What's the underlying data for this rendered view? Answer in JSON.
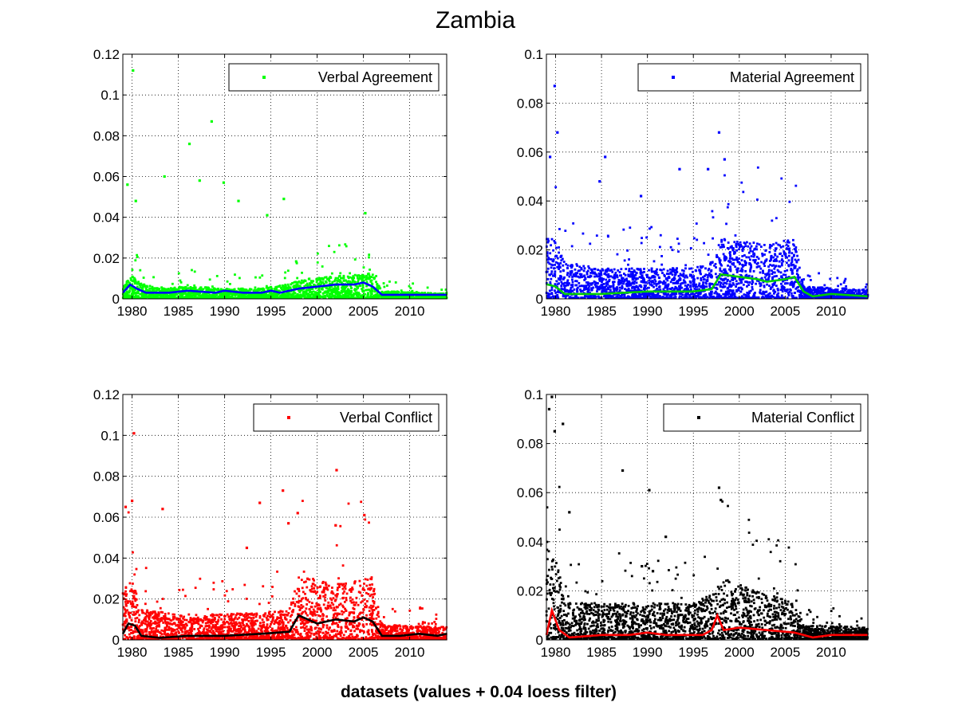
{
  "figure": {
    "title": "Zambia",
    "xlabel": "datasets (values + 0.04 loess filter)"
  },
  "chart_data": [
    {
      "type": "scatter",
      "legend": "Verbal Agreement",
      "legend_placement": "top-right",
      "grid": true,
      "point_color": "#00ff00",
      "line_color": "#0000ff",
      "xlim": [
        1979,
        2014
      ],
      "ylim": [
        0,
        0.12
      ],
      "xticks": [
        1980,
        1985,
        1990,
        1995,
        2000,
        2005,
        2010
      ],
      "yticks": [
        0,
        0.02,
        0.04,
        0.06,
        0.08,
        0.1,
        0.12
      ],
      "ytick_labels": [
        "0",
        "0.02",
        "0.04",
        "0.06",
        "0.08",
        "0.1",
        "0.12"
      ],
      "base_level": [
        [
          1979,
          0.005
        ],
        [
          1980,
          0.009
        ],
        [
          1981,
          0.006
        ],
        [
          1983,
          0.004
        ],
        [
          1986,
          0.005
        ],
        [
          1990,
          0.004
        ],
        [
          1994,
          0.004
        ],
        [
          1997,
          0.006
        ],
        [
          1999,
          0.008
        ],
        [
          2002,
          0.009
        ],
        [
          2006,
          0.01
        ],
        [
          2007,
          0.003
        ],
        [
          2014,
          0.002
        ]
      ],
      "outliers": [
        [
          1979.5,
          0.056
        ],
        [
          1980.1,
          0.112
        ],
        [
          1983.5,
          0.06
        ],
        [
          1986.2,
          0.076
        ],
        [
          1988.6,
          0.087
        ],
        [
          1989.9,
          0.057
        ],
        [
          1991.5,
          0.048
        ],
        [
          1994.6,
          0.041
        ],
        [
          1996.4,
          0.049
        ],
        [
          2005.2,
          0.042
        ],
        [
          1987.3,
          0.058
        ],
        [
          1980.4,
          0.048
        ]
      ],
      "loess": [
        [
          1979,
          0.003
        ],
        [
          1979.8,
          0.007
        ],
        [
          1980.5,
          0.005
        ],
        [
          1981.5,
          0.003
        ],
        [
          1984,
          0.003
        ],
        [
          1986,
          0.004
        ],
        [
          1989,
          0.003
        ],
        [
          1990,
          0.004
        ],
        [
          1992,
          0.003
        ],
        [
          1994,
          0.003
        ],
        [
          1995,
          0.004
        ],
        [
          1996,
          0.003
        ],
        [
          1998,
          0.005
        ],
        [
          2000,
          0.006
        ],
        [
          2002,
          0.007
        ],
        [
          2004,
          0.007
        ],
        [
          2005,
          0.008
        ],
        [
          2006,
          0.006
        ],
        [
          2007,
          0.002
        ],
        [
          2010,
          0.002
        ],
        [
          2012,
          0.002
        ],
        [
          2014,
          0.002
        ]
      ]
    },
    {
      "type": "scatter",
      "legend": "Material Agreement",
      "legend_placement": "top-right",
      "grid": true,
      "point_color": "#0000ff",
      "line_color": "#00cc00",
      "xlim": [
        1979,
        2014
      ],
      "ylim": [
        0,
        0.1
      ],
      "xticks": [
        1980,
        1985,
        1990,
        1995,
        2000,
        2005,
        2010
      ],
      "yticks": [
        0,
        0.02,
        0.04,
        0.06,
        0.08,
        0.1
      ],
      "ytick_labels": [
        "0",
        "0.02",
        "0.04",
        "0.06",
        "0.08",
        "0.1"
      ],
      "base_level": [
        [
          1979,
          0.02
        ],
        [
          1980,
          0.02
        ],
        [
          1981,
          0.012
        ],
        [
          1985,
          0.01
        ],
        [
          1990,
          0.01
        ],
        [
          1995,
          0.01
        ],
        [
          1997,
          0.012
        ],
        [
          1998,
          0.02
        ],
        [
          2003,
          0.018
        ],
        [
          2006,
          0.02
        ],
        [
          2007,
          0.004
        ],
        [
          2014,
          0.003
        ]
      ],
      "outliers": [
        [
          1979.4,
          0.058
        ],
        [
          1979.9,
          0.087
        ],
        [
          1980.2,
          0.068
        ],
        [
          1985.4,
          0.058
        ],
        [
          1993.5,
          0.053
        ],
        [
          1996.6,
          0.053
        ],
        [
          1997.8,
          0.068
        ],
        [
          1998.4,
          0.057
        ],
        [
          1984.8,
          0.048
        ],
        [
          1989.3,
          0.042
        ]
      ],
      "loess": [
        [
          1979,
          0.006
        ],
        [
          1980,
          0.005
        ],
        [
          1981,
          0.002
        ],
        [
          1985,
          0.002
        ],
        [
          1990,
          0.003
        ],
        [
          1995,
          0.003
        ],
        [
          1997,
          0.004
        ],
        [
          1998,
          0.01
        ],
        [
          2000,
          0.009
        ],
        [
          2002,
          0.008
        ],
        [
          2003,
          0.007
        ],
        [
          2005,
          0.008
        ],
        [
          2006,
          0.009
        ],
        [
          2007,
          0.003
        ],
        [
          2008,
          0.001
        ],
        [
          2010,
          0.002
        ],
        [
          2014,
          0.001
        ]
      ]
    },
    {
      "type": "scatter",
      "legend": "Verbal Conflict",
      "legend_placement": "top-right",
      "grid": true,
      "point_color": "#ff0000",
      "line_color": "#000000",
      "xlim": [
        1979,
        2014
      ],
      "ylim": [
        0,
        0.12
      ],
      "xticks": [
        1980,
        1985,
        1990,
        1995,
        2000,
        2005,
        2010
      ],
      "yticks": [
        0,
        0.02,
        0.04,
        0.06,
        0.08,
        0.1,
        0.12
      ],
      "ytick_labels": [
        "0",
        "0.02",
        "0.04",
        "0.06",
        "0.08",
        "0.1",
        "0.12"
      ],
      "base_level": [
        [
          1979,
          0.02
        ],
        [
          1980,
          0.025
        ],
        [
          1981,
          0.012
        ],
        [
          1985,
          0.01
        ],
        [
          1990,
          0.01
        ],
        [
          1995,
          0.011
        ],
        [
          1997,
          0.012
        ],
        [
          1998,
          0.025
        ],
        [
          2003,
          0.022
        ],
        [
          2006,
          0.025
        ],
        [
          2007,
          0.006
        ],
        [
          2014,
          0.005
        ]
      ],
      "outliers": [
        [
          1979.3,
          0.065
        ],
        [
          1980.2,
          0.101
        ],
        [
          1980.0,
          0.068
        ],
        [
          1983.3,
          0.064
        ],
        [
          1993.8,
          0.067
        ],
        [
          1996.3,
          0.073
        ],
        [
          1997.9,
          0.062
        ],
        [
          2002.1,
          0.083
        ],
        [
          2005.1,
          0.061
        ],
        [
          1992.4,
          0.045
        ],
        [
          1996.9,
          0.057
        ],
        [
          2002.0,
          0.056
        ]
      ],
      "loess": [
        [
          1979,
          0.003
        ],
        [
          1979.6,
          0.008
        ],
        [
          1980.3,
          0.007
        ],
        [
          1981,
          0.002
        ],
        [
          1983,
          0.001
        ],
        [
          1986,
          0.002
        ],
        [
          1990,
          0.002
        ],
        [
          1994,
          0.003
        ],
        [
          1997,
          0.004
        ],
        [
          1998,
          0.012
        ],
        [
          1999,
          0.01
        ],
        [
          2000,
          0.008
        ],
        [
          2002,
          0.01
        ],
        [
          2004,
          0.009
        ],
        [
          2005,
          0.011
        ],
        [
          2006,
          0.009
        ],
        [
          2007,
          0.002
        ],
        [
          2009,
          0.002
        ],
        [
          2011,
          0.003
        ],
        [
          2013,
          0.002
        ],
        [
          2014,
          0.003
        ]
      ]
    },
    {
      "type": "scatter",
      "legend": "Material Conflict",
      "legend_placement": "top-right",
      "grid": true,
      "point_color": "#000000",
      "line_color": "#ff0000",
      "xlim": [
        1979,
        2014
      ],
      "ylim": [
        0,
        0.1
      ],
      "xticks": [
        1980,
        1985,
        1990,
        1995,
        2000,
        2005,
        2010
      ],
      "yticks": [
        0,
        0.02,
        0.04,
        0.06,
        0.08,
        0.1
      ],
      "ytick_labels": [
        "0",
        "0.02",
        "0.04",
        "0.06",
        "0.08",
        "0.1"
      ],
      "base_level": [
        [
          1979,
          0.04
        ],
        [
          1980,
          0.03
        ],
        [
          1981,
          0.012
        ],
        [
          1985,
          0.012
        ],
        [
          1990,
          0.012
        ],
        [
          1995,
          0.012
        ],
        [
          1997,
          0.015
        ],
        [
          1998,
          0.02
        ],
        [
          2003,
          0.015
        ],
        [
          2006,
          0.012
        ],
        [
          2007,
          0.005
        ],
        [
          2014,
          0.004
        ]
      ],
      "outliers": [
        [
          1979.3,
          0.094
        ],
        [
          1979.6,
          0.099
        ],
        [
          1979.9,
          0.085
        ],
        [
          1980.8,
          0.088
        ],
        [
          1981.5,
          0.052
        ],
        [
          1987.3,
          0.069
        ],
        [
          1990.2,
          0.061
        ],
        [
          1992.0,
          0.042
        ],
        [
          1997.8,
          0.062
        ],
        [
          1998.0,
          0.057
        ],
        [
          1989.4,
          0.03
        ],
        [
          1990.6,
          0.028
        ]
      ],
      "loess": [
        [
          1979,
          0.002
        ],
        [
          1979.6,
          0.012
        ],
        [
          1980.4,
          0.004
        ],
        [
          1981.5,
          0.001
        ],
        [
          1985,
          0.002
        ],
        [
          1988,
          0.002
        ],
        [
          1990,
          0.003
        ],
        [
          1992,
          0.002
        ],
        [
          1996,
          0.002
        ],
        [
          1997,
          0.004
        ],
        [
          1997.6,
          0.01
        ],
        [
          1998.3,
          0.004
        ],
        [
          2000,
          0.005
        ],
        [
          2003,
          0.004
        ],
        [
          2006,
          0.003
        ],
        [
          2008,
          0.001
        ],
        [
          2010,
          0.002
        ],
        [
          2014,
          0.002
        ]
      ]
    }
  ]
}
